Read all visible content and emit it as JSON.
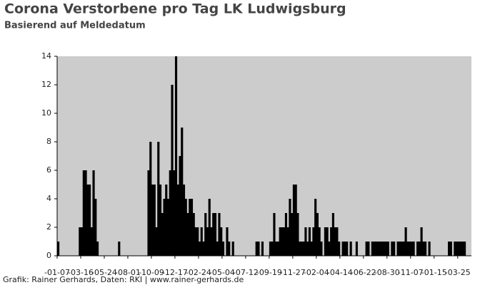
{
  "chart_data": {
    "type": "bar",
    "title": "Corona Verstorbene pro Tag LK Ludwigsburg",
    "subtitle": "Basierend auf Meldedatum",
    "source": "Grafik: Rainer Gerhards, Daten: RKI | www.rainer-gerhards.de",
    "categories": [
      "-01-07",
      null,
      null,
      null,
      null,
      null,
      null,
      null,
      null,
      null,
      null,
      null,
      "-03-16",
      null,
      null,
      null,
      null,
      null,
      null,
      null,
      null,
      null,
      null,
      null,
      "-05-24",
      null,
      null,
      null,
      null,
      null,
      null,
      null,
      null,
      null,
      null,
      null,
      "-08-01",
      null,
      null,
      null,
      null,
      null,
      null,
      null,
      null,
      null,
      null,
      null,
      "-10-09",
      null,
      null,
      null,
      null,
      null,
      null,
      null,
      null,
      null,
      null,
      null,
      "-12-17",
      null,
      null,
      null,
      null,
      null,
      null,
      null,
      null,
      null,
      null,
      null,
      "-02-24",
      null,
      null,
      null,
      null,
      null,
      null,
      null,
      null,
      null,
      null,
      null,
      "-05-04",
      null,
      null,
      null,
      null,
      null,
      null,
      null,
      null,
      null,
      null,
      null,
      "-07-12",
      null,
      null,
      null,
      null,
      null,
      null,
      null,
      null,
      null,
      null,
      null,
      "-09-19",
      null,
      null,
      null,
      null,
      null,
      null,
      null,
      null,
      null,
      null,
      null,
      "-11-27",
      null,
      null,
      null,
      null,
      null,
      null,
      null,
      null,
      null,
      null,
      null,
      "-02-04",
      null,
      null,
      null,
      null,
      null,
      null,
      null,
      null,
      null,
      null,
      null,
      "-04-14",
      null,
      null,
      null,
      null,
      null,
      null,
      null,
      null,
      null,
      null,
      null,
      "-06-22",
      null,
      null,
      null,
      null,
      null,
      null,
      null,
      null,
      null,
      null,
      null,
      "-08-30",
      null,
      null,
      null,
      null,
      null,
      null,
      null,
      null,
      null,
      null,
      null,
      "-11-07",
      null,
      null,
      null,
      null,
      null,
      null,
      null,
      null,
      null,
      null,
      null,
      "-01-15",
      null,
      null,
      null,
      null,
      null,
      null,
      null,
      null,
      null,
      null,
      null,
      "-03-25",
      null,
      null,
      null,
      null,
      null,
      null
    ],
    "values": [
      1,
      0,
      0,
      0,
      0,
      0,
      0,
      0,
      0,
      0,
      0,
      2,
      2,
      6,
      6,
      5,
      5,
      2,
      6,
      4,
      1,
      0,
      0,
      0,
      0,
      0,
      0,
      0,
      0,
      0,
      0,
      1,
      0,
      0,
      0,
      0,
      0,
      0,
      0,
      0,
      0,
      0,
      0,
      0,
      0,
      0,
      6,
      8,
      5,
      5,
      2,
      8,
      5,
      3,
      4,
      5,
      4,
      6,
      12,
      6,
      14,
      5,
      7,
      9,
      5,
      4,
      3,
      4,
      4,
      3,
      2,
      2,
      1,
      2,
      1,
      3,
      2,
      4,
      2,
      3,
      3,
      1,
      3,
      2,
      1,
      0,
      2,
      1,
      0,
      1,
      0,
      0,
      0,
      0,
      0,
      0,
      0,
      0,
      0,
      0,
      0,
      1,
      1,
      0,
      1,
      0,
      0,
      0,
      1,
      1,
      3,
      1,
      1,
      2,
      2,
      2,
      3,
      2,
      4,
      3,
      5,
      5,
      3,
      1,
      1,
      1,
      2,
      1,
      2,
      1,
      2,
      4,
      3,
      2,
      1,
      0,
      2,
      2,
      1,
      2,
      3,
      2,
      2,
      1,
      0,
      1,
      1,
      1,
      0,
      1,
      0,
      0,
      1,
      0,
      0,
      0,
      0,
      1,
      1,
      0,
      1,
      1,
      1,
      1,
      1,
      1,
      1,
      1,
      1,
      0,
      1,
      1,
      0,
      1,
      1,
      1,
      1,
      2,
      1,
      1,
      1,
      1,
      0,
      1,
      1,
      2,
      1,
      1,
      0,
      1,
      0,
      0,
      0,
      0,
      0,
      0,
      0,
      0,
      0,
      1,
      1,
      0,
      1,
      1,
      1,
      1,
      1,
      1,
      0,
      0,
      0
    ],
    "color": "#000000",
    "background": "#cccccc",
    "ylim": [
      0,
      14
    ],
    "yticks": [
      0,
      2,
      4,
      6,
      8,
      10,
      12,
      14
    ],
    "grid": false
  }
}
